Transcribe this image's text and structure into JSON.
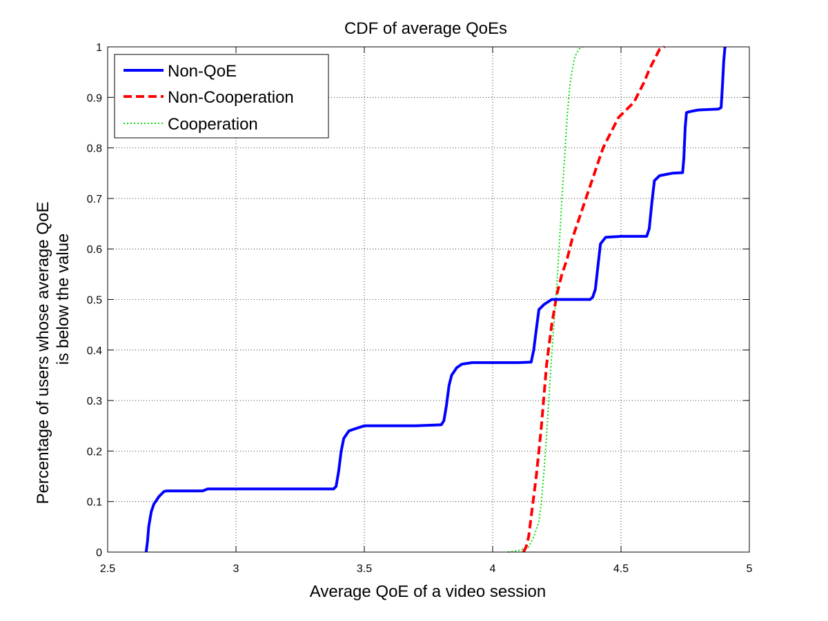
{
  "chart_data": {
    "type": "line",
    "title": "CDF of average QoEs",
    "xlabel": "Average QoE of a video session",
    "ylabel_lines": [
      "Percentage of users whose average QoE",
      "is below the value"
    ],
    "xlim": [
      2.5,
      5
    ],
    "ylim": [
      0,
      1
    ],
    "xticks": [
      2.5,
      3,
      3.5,
      4,
      4.5,
      5
    ],
    "xtick_labels": [
      "2.5",
      "3",
      "3.5",
      "4",
      "4.5",
      "5"
    ],
    "yticks": [
      0,
      0.1,
      0.2,
      0.3,
      0.4,
      0.5,
      0.6,
      0.7,
      0.8,
      0.9,
      1
    ],
    "ytick_labels": [
      "0",
      "0.1",
      "0.2",
      "0.3",
      "0.4",
      "0.5",
      "0.6",
      "0.7",
      "0.8",
      "0.9",
      "1"
    ],
    "grid": true,
    "legend_position": "top-left",
    "series": [
      {
        "name": "Non-QoE",
        "color": "#0000ff",
        "style": "solid",
        "x": [
          2.65,
          2.655,
          2.66,
          2.67,
          2.68,
          2.7,
          2.72,
          2.73,
          2.8,
          2.87,
          2.89,
          3.0,
          3.2,
          3.38,
          3.39,
          3.4,
          3.41,
          3.42,
          3.44,
          3.47,
          3.5,
          3.6,
          3.7,
          3.8,
          3.81,
          3.82,
          3.83,
          3.84,
          3.86,
          3.88,
          3.92,
          4.0,
          4.1,
          4.15,
          4.16,
          4.17,
          4.18,
          4.2,
          4.23,
          4.28,
          4.33,
          4.38,
          4.39,
          4.4,
          4.41,
          4.42,
          4.44,
          4.5,
          4.6,
          4.61,
          4.62,
          4.63,
          4.65,
          4.7,
          4.74,
          4.745,
          4.75,
          4.755,
          4.77,
          4.8,
          4.88,
          4.89,
          4.895,
          4.9,
          4.905
        ],
        "y": [
          0,
          0.02,
          0.05,
          0.08,
          0.095,
          0.11,
          0.12,
          0.121,
          0.121,
          0.121,
          0.125,
          0.125,
          0.125,
          0.125,
          0.13,
          0.16,
          0.2,
          0.225,
          0.24,
          0.245,
          0.25,
          0.25,
          0.25,
          0.252,
          0.26,
          0.29,
          0.33,
          0.35,
          0.365,
          0.372,
          0.375,
          0.375,
          0.375,
          0.376,
          0.4,
          0.44,
          0.48,
          0.49,
          0.5,
          0.5,
          0.5,
          0.5,
          0.505,
          0.52,
          0.565,
          0.61,
          0.623,
          0.625,
          0.625,
          0.64,
          0.69,
          0.735,
          0.745,
          0.75,
          0.751,
          0.78,
          0.84,
          0.87,
          0.872,
          0.875,
          0.877,
          0.88,
          0.92,
          0.97,
          1.0
        ]
      },
      {
        "name": "Non-Cooperation",
        "color": "#ff0000",
        "style": "dashed",
        "x": [
          4.12,
          4.13,
          4.14,
          4.15,
          4.16,
          4.17,
          4.18,
          4.19,
          4.2,
          4.21,
          4.22,
          4.23,
          4.24,
          4.25,
          4.27,
          4.29,
          4.31,
          4.33,
          4.35,
          4.37,
          4.39,
          4.41,
          4.43,
          4.46,
          4.49,
          4.52,
          4.55,
          4.57,
          4.59,
          4.61,
          4.63,
          4.65,
          4.67
        ],
        "y": [
          0,
          0.01,
          0.03,
          0.07,
          0.11,
          0.15,
          0.2,
          0.25,
          0.31,
          0.37,
          0.41,
          0.45,
          0.48,
          0.51,
          0.55,
          0.58,
          0.62,
          0.65,
          0.68,
          0.71,
          0.74,
          0.77,
          0.8,
          0.83,
          0.86,
          0.875,
          0.89,
          0.91,
          0.93,
          0.955,
          0.975,
          0.995,
          1.0
        ]
      },
      {
        "name": "Cooperation",
        "color": "#00dd00",
        "style": "dotted",
        "x": [
          4.06,
          4.1,
          4.14,
          4.16,
          4.18,
          4.19,
          4.2,
          4.21,
          4.22,
          4.23,
          4.24,
          4.25,
          4.26,
          4.27,
          4.28,
          4.29,
          4.3,
          4.31,
          4.32,
          4.33,
          4.34,
          4.35
        ],
        "y": [
          0,
          0.003,
          0.01,
          0.03,
          0.06,
          0.1,
          0.16,
          0.23,
          0.31,
          0.39,
          0.46,
          0.53,
          0.61,
          0.7,
          0.78,
          0.86,
          0.92,
          0.955,
          0.98,
          0.99,
          0.998,
          1.0
        ]
      }
    ]
  }
}
